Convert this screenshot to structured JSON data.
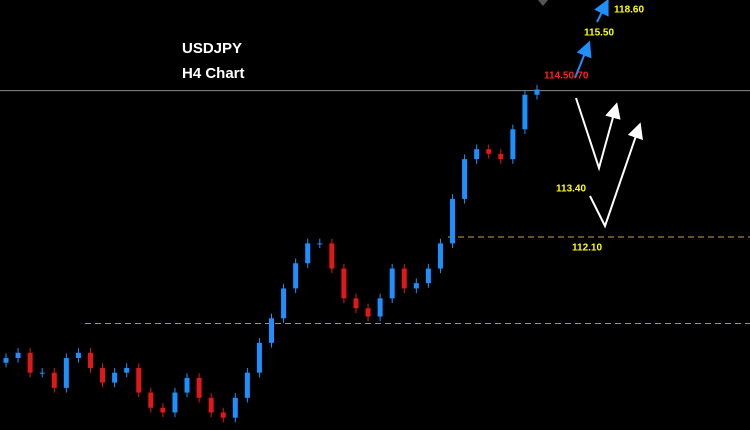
{
  "chart_data": {
    "type": "candlestick",
    "title": "USDJPY",
    "subtitle": "H4 Chart",
    "ylim": [
      108.8,
      116.15
    ],
    "up_color": "#1e8fff",
    "down_color": "#e01818",
    "open": [
      109.95,
      110.03,
      110.12,
      109.78,
      109.78,
      109.52,
      110.03,
      110.12,
      109.86,
      109.61,
      109.78,
      109.86,
      109.44,
      109.18,
      109.1,
      109.44,
      109.69,
      109.35,
      109.1,
      109.01,
      109.35,
      109.78,
      110.29,
      110.71,
      111.22,
      111.65,
      111.99,
      111.99,
      111.56,
      111.05,
      110.88,
      110.74,
      111.05,
      111.56,
      111.22,
      111.31,
      111.56,
      111.99,
      112.75,
      113.43,
      113.6,
      113.52,
      113.43,
      113.94,
      114.53
    ],
    "high": [
      110.11,
      110.2,
      110.2,
      109.86,
      109.86,
      110.11,
      110.2,
      110.2,
      109.94,
      109.86,
      109.94,
      109.94,
      109.52,
      109.26,
      109.52,
      109.77,
      109.77,
      109.43,
      109.18,
      109.43,
      109.86,
      110.37,
      110.79,
      111.3,
      111.73,
      112.07,
      112.07,
      112.07,
      111.64,
      111.13,
      110.96,
      111.13,
      111.64,
      111.64,
      111.39,
      111.64,
      112.07,
      112.83,
      113.51,
      113.68,
      113.68,
      113.6,
      114.02,
      114.61,
      114.7
    ],
    "low": [
      109.87,
      109.95,
      109.7,
      109.7,
      109.44,
      109.44,
      109.95,
      109.78,
      109.53,
      109.53,
      109.7,
      109.36,
      109.1,
      109.02,
      109.02,
      109.36,
      109.27,
      109.02,
      108.93,
      108.93,
      109.27,
      109.7,
      110.21,
      110.63,
      111.14,
      111.57,
      111.91,
      111.48,
      110.97,
      110.8,
      110.66,
      110.66,
      110.97,
      111.14,
      111.14,
      111.23,
      111.48,
      111.91,
      112.67,
      113.35,
      113.44,
      113.35,
      113.35,
      113.86,
      114.45
    ],
    "close": [
      110.03,
      110.12,
      109.78,
      109.78,
      109.52,
      110.03,
      110.12,
      109.86,
      109.61,
      109.78,
      109.86,
      109.44,
      109.18,
      109.1,
      109.44,
      109.69,
      109.35,
      109.1,
      109.01,
      109.35,
      109.78,
      110.29,
      110.71,
      111.22,
      111.65,
      111.99,
      111.99,
      111.56,
      111.05,
      110.88,
      110.74,
      111.05,
      111.56,
      111.22,
      111.31,
      111.56,
      111.99,
      112.75,
      113.43,
      113.6,
      113.52,
      113.43,
      113.94,
      114.53,
      114.62
    ],
    "levels": [
      {
        "value": 114.6,
        "color": "#8a8a8a",
        "style": "solid"
      },
      {
        "value": 112.1,
        "color": "#c8a040",
        "style": "dashed"
      },
      {
        "value": 110.62,
        "color": "#9a9a50",
        "style": "dashed"
      }
    ],
    "annotations": [
      {
        "text": "118.60",
        "color": "#ffff00"
      },
      {
        "text": "115.50",
        "color": "#ffff00"
      },
      {
        "text": "114.50-70",
        "color": "#ff2020"
      },
      {
        "text": "113.40",
        "color": "#ffff00"
      },
      {
        "text": "112.10",
        "color": "#ffff00"
      }
    ]
  }
}
